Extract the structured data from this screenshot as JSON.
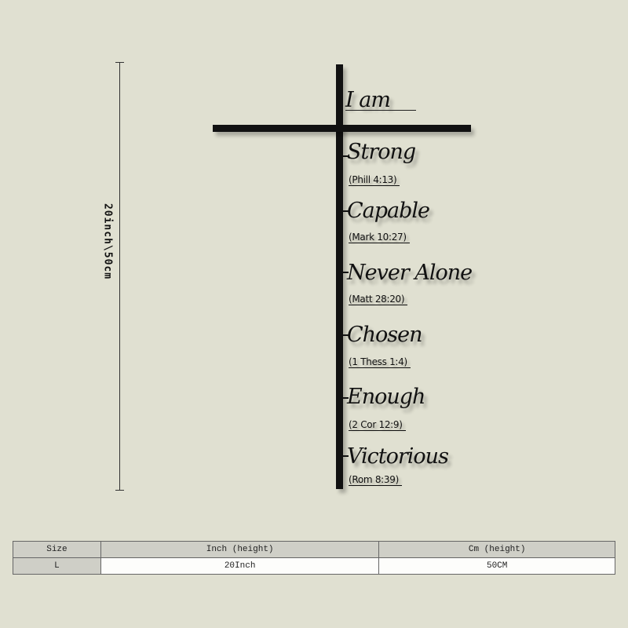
{
  "dimension_label": "20inch\\50cm",
  "sign": {
    "title": "I am",
    "items": [
      {
        "word": "Strong",
        "ref": "(Phill 4:13)"
      },
      {
        "word": "Capable",
        "ref": "(Mark 10:27)"
      },
      {
        "word": "Never Alone",
        "ref": "(Matt 28:20)"
      },
      {
        "word": "Chosen",
        "ref": "(1 Thess 1:4)"
      },
      {
        "word": "Enough",
        "ref": "(2 Cor 12:9)"
      },
      {
        "word": "Victorious",
        "ref": "(Rom 8:39)"
      }
    ]
  },
  "size_table": {
    "headers": [
      "Size",
      "Inch (height)",
      "Cm (height)"
    ],
    "rows": [
      [
        "L",
        "20Inch",
        "50CM"
      ]
    ]
  }
}
